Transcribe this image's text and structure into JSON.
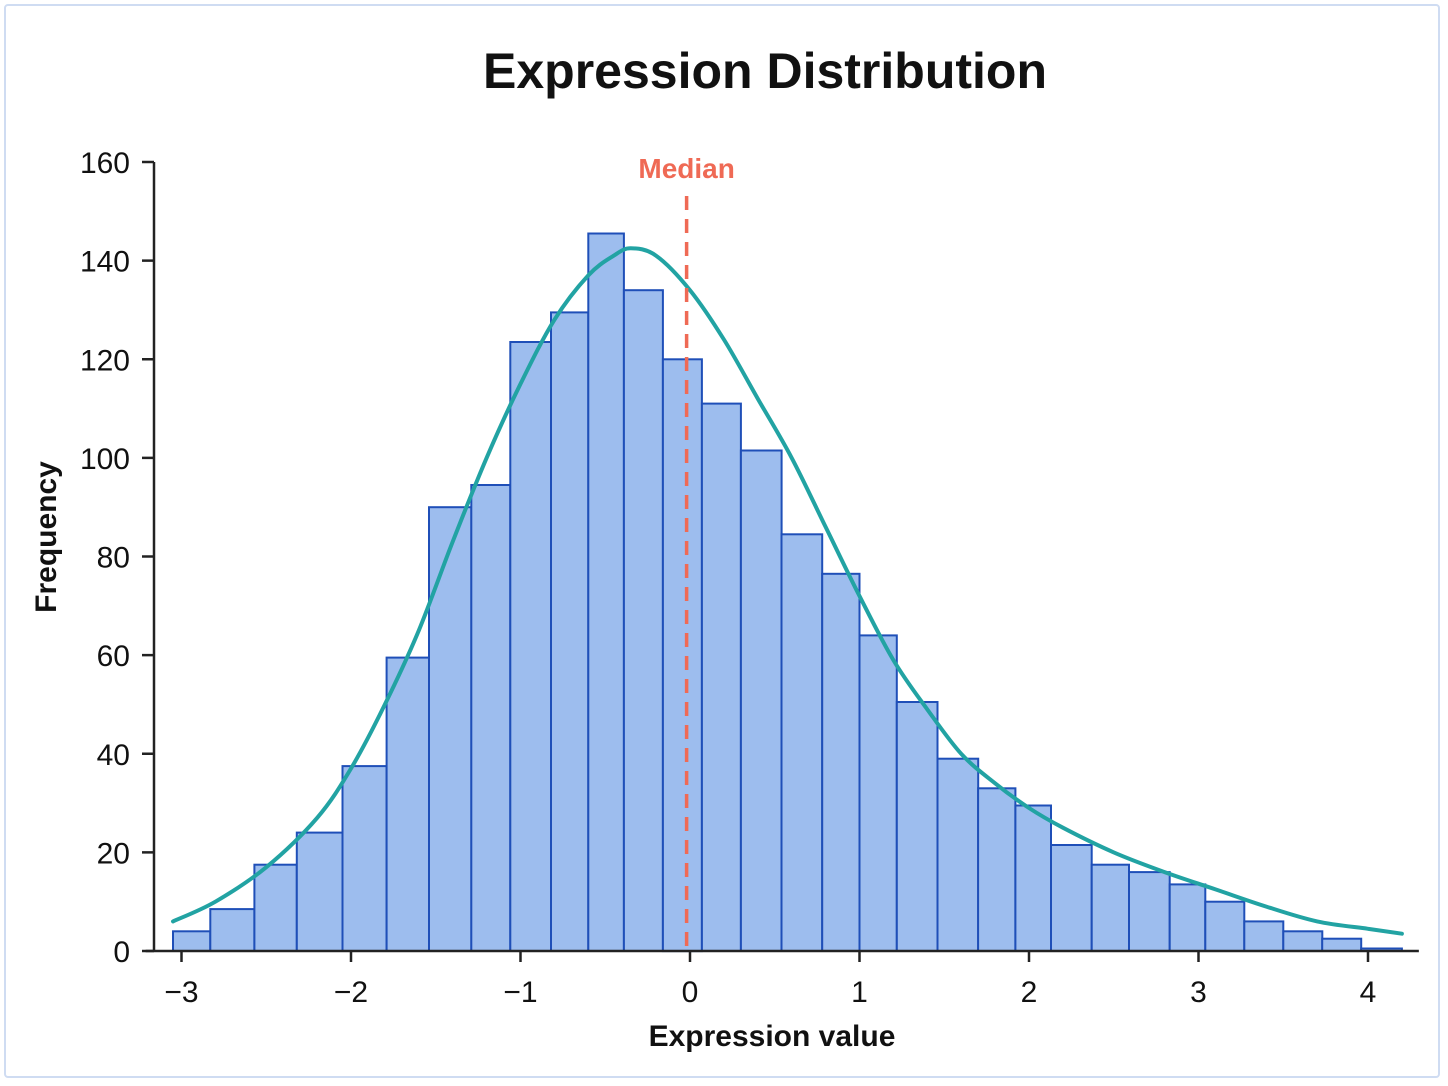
{
  "chart_data": {
    "type": "bar",
    "title": "Expression Distribution",
    "xlabel": "Expression value",
    "ylabel": "Frequency",
    "xlim": [
      -3.2,
      4.3
    ],
    "ylim": [
      0,
      160
    ],
    "x_ticks": [
      {
        "value": -3,
        "label": "−3"
      },
      {
        "value": -2,
        "label": "−2"
      },
      {
        "value": -1,
        "label": "−1"
      },
      {
        "value": 0,
        "label": "0"
      },
      {
        "value": 1,
        "label": "1"
      },
      {
        "value": 2,
        "label": "2"
      },
      {
        "value": 3,
        "label": "3"
      },
      {
        "value": 4,
        "label": "4"
      }
    ],
    "y_ticks": [
      {
        "value": 0,
        "label": "0"
      },
      {
        "value": 20,
        "label": "20"
      },
      {
        "value": 40,
        "label": "40"
      },
      {
        "value": 60,
        "label": "60"
      },
      {
        "value": 80,
        "label": "80"
      },
      {
        "value": 100,
        "label": "100"
      },
      {
        "value": 120,
        "label": "120"
      },
      {
        "value": 140,
        "label": "140"
      },
      {
        "value": 160,
        "label": "160"
      }
    ],
    "bin_edges": [
      -3.05,
      -2.83,
      -2.57,
      -2.32,
      -2.05,
      -1.79,
      -1.54,
      -1.29,
      -1.06,
      -0.82,
      -0.6,
      -0.39,
      -0.16,
      0.07,
      0.3,
      0.54,
      0.78,
      1.0,
      1.22,
      1.46,
      1.7,
      1.92,
      2.13,
      2.37,
      2.59,
      2.83,
      3.04,
      3.27,
      3.5,
      3.73,
      3.96,
      4.2
    ],
    "counts": [
      4,
      8.5,
      17.5,
      24,
      37.5,
      59.5,
      90,
      94.5,
      123.5,
      129.5,
      145.5,
      134,
      120,
      111,
      101.5,
      84.5,
      76.5,
      64,
      50.5,
      39,
      33,
      29.5,
      21.5,
      17.5,
      16,
      13.5,
      10,
      6,
      4,
      2.5,
      0.5
    ],
    "median": {
      "value": -0.02,
      "label": "Median",
      "color": "#ef6a55"
    },
    "density_curve": {
      "color": "#22a3a3",
      "x": [
        -3.05,
        -2.8,
        -2.5,
        -2.2,
        -2.0,
        -1.8,
        -1.6,
        -1.4,
        -1.2,
        -1.0,
        -0.8,
        -0.6,
        -0.45,
        -0.35,
        -0.2,
        0.0,
        0.2,
        0.4,
        0.6,
        0.8,
        1.0,
        1.2,
        1.4,
        1.6,
        1.8,
        2.0,
        2.2,
        2.5,
        2.8,
        3.1,
        3.4,
        3.7,
        4.0,
        4.2
      ],
      "y": [
        6,
        10,
        17,
        27,
        37,
        50,
        65,
        83,
        100,
        115,
        128,
        137,
        141,
        142.5,
        141,
        134,
        124,
        112,
        100,
        86,
        72,
        59,
        49,
        40,
        34,
        29,
        25,
        20,
        16,
        12.5,
        9,
        6,
        4.5,
        3.5
      ]
    },
    "bar_fill": "#9dbdee",
    "bar_stroke": "#1f4fb8",
    "grid": false,
    "legend": "none"
  }
}
